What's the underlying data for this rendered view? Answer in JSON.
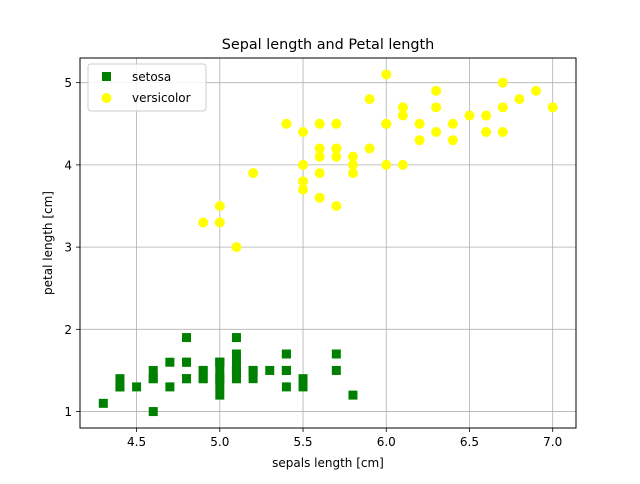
{
  "chart_data": {
    "type": "scatter",
    "title": "Sepal length and Petal length",
    "xlabel": "sepals length [cm]",
    "ylabel": "petal length [cm]",
    "xlim": [
      4.16,
      7.14
    ],
    "ylim": [
      0.8,
      5.3
    ],
    "xticks": [
      4.5,
      5.0,
      5.5,
      6.0,
      6.5,
      7.0
    ],
    "xtick_labels": [
      "4.5",
      "5.0",
      "5.5",
      "6.0",
      "6.5",
      "7.0"
    ],
    "yticks": [
      1,
      2,
      3,
      4,
      5
    ],
    "ytick_labels": [
      "1",
      "2",
      "3",
      "4",
      "5"
    ],
    "grid": true,
    "legend_position": "top-left",
    "series": [
      {
        "name": "setosa",
        "marker": "square",
        "color": "#008000",
        "points": [
          [
            5.1,
            1.4
          ],
          [
            4.9,
            1.4
          ],
          [
            4.7,
            1.3
          ],
          [
            4.6,
            1.5
          ],
          [
            5.0,
            1.4
          ],
          [
            5.4,
            1.7
          ],
          [
            4.6,
            1.4
          ],
          [
            5.0,
            1.5
          ],
          [
            4.4,
            1.4
          ],
          [
            4.9,
            1.5
          ],
          [
            5.4,
            1.5
          ],
          [
            4.8,
            1.6
          ],
          [
            4.8,
            1.4
          ],
          [
            4.3,
            1.1
          ],
          [
            5.8,
            1.2
          ],
          [
            5.7,
            1.5
          ],
          [
            5.4,
            1.3
          ],
          [
            5.1,
            1.4
          ],
          [
            5.7,
            1.7
          ],
          [
            5.1,
            1.5
          ],
          [
            5.4,
            1.7
          ],
          [
            5.1,
            1.5
          ],
          [
            4.6,
            1.0
          ],
          [
            5.1,
            1.7
          ],
          [
            4.8,
            1.9
          ],
          [
            5.0,
            1.6
          ],
          [
            5.0,
            1.6
          ],
          [
            5.2,
            1.5
          ],
          [
            5.2,
            1.4
          ],
          [
            4.7,
            1.6
          ],
          [
            4.8,
            1.6
          ],
          [
            5.4,
            1.5
          ],
          [
            5.2,
            1.5
          ],
          [
            5.5,
            1.4
          ],
          [
            4.9,
            1.5
          ],
          [
            5.0,
            1.2
          ],
          [
            5.5,
            1.3
          ],
          [
            4.9,
            1.4
          ],
          [
            4.4,
            1.3
          ],
          [
            5.1,
            1.5
          ],
          [
            5.0,
            1.3
          ],
          [
            4.5,
            1.3
          ],
          [
            4.4,
            1.3
          ],
          [
            5.0,
            1.6
          ],
          [
            5.1,
            1.9
          ],
          [
            4.8,
            1.4
          ],
          [
            5.1,
            1.6
          ],
          [
            4.6,
            1.4
          ],
          [
            5.3,
            1.5
          ],
          [
            5.0,
            1.4
          ]
        ]
      },
      {
        "name": "versicolor",
        "marker": "circle",
        "color": "#ffff00",
        "points": [
          [
            7.0,
            4.7
          ],
          [
            6.4,
            4.5
          ],
          [
            6.9,
            4.9
          ],
          [
            5.5,
            4.0
          ],
          [
            6.5,
            4.6
          ],
          [
            5.7,
            4.5
          ],
          [
            6.3,
            4.7
          ],
          [
            4.9,
            3.3
          ],
          [
            6.6,
            4.6
          ],
          [
            5.2,
            3.9
          ],
          [
            5.0,
            3.5
          ],
          [
            5.9,
            4.2
          ],
          [
            6.0,
            4.0
          ],
          [
            6.1,
            4.7
          ],
          [
            5.6,
            3.6
          ],
          [
            6.7,
            4.4
          ],
          [
            5.6,
            4.5
          ],
          [
            5.8,
            4.1
          ],
          [
            6.2,
            4.5
          ],
          [
            5.6,
            3.9
          ],
          [
            5.9,
            4.8
          ],
          [
            6.1,
            4.0
          ],
          [
            6.3,
            4.9
          ],
          [
            6.1,
            4.7
          ],
          [
            6.4,
            4.3
          ],
          [
            6.6,
            4.4
          ],
          [
            6.8,
            4.8
          ],
          [
            6.7,
            5.0
          ],
          [
            6.0,
            4.5
          ],
          [
            5.7,
            3.5
          ],
          [
            5.5,
            3.8
          ],
          [
            5.5,
            3.7
          ],
          [
            5.8,
            3.9
          ],
          [
            6.0,
            5.1
          ],
          [
            5.4,
            4.5
          ],
          [
            6.0,
            4.5
          ],
          [
            6.7,
            4.7
          ],
          [
            6.3,
            4.4
          ],
          [
            5.6,
            4.1
          ],
          [
            5.5,
            4.0
          ],
          [
            5.5,
            4.4
          ],
          [
            6.1,
            4.6
          ],
          [
            5.8,
            4.0
          ],
          [
            5.0,
            3.3
          ],
          [
            5.6,
            4.2
          ],
          [
            5.7,
            4.2
          ],
          [
            5.7,
            4.2
          ],
          [
            6.2,
            4.3
          ],
          [
            5.1,
            3.0
          ],
          [
            5.7,
            4.1
          ]
        ]
      }
    ]
  }
}
